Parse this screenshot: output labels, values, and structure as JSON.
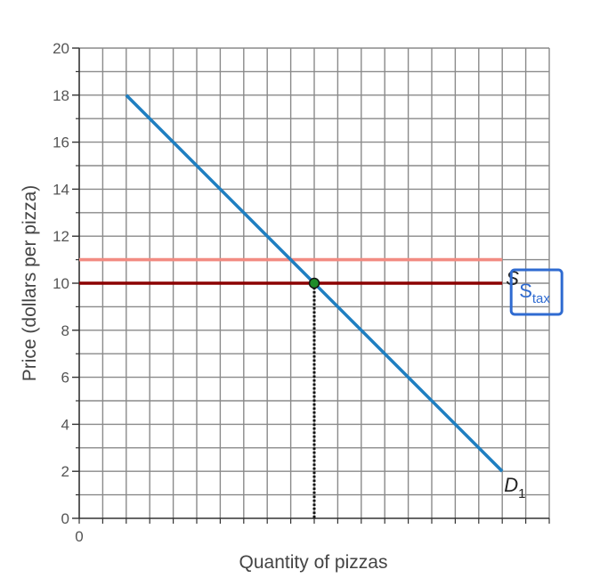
{
  "chart_data": {
    "type": "line",
    "xlabel": "Quantity of pizzas",
    "ylabel": "Price (dollars per pizza)",
    "ylim": [
      0,
      20
    ],
    "y_ticks": [
      0,
      2,
      4,
      6,
      8,
      10,
      12,
      14,
      16,
      18,
      20
    ],
    "x_origin_label": "0",
    "grid": true,
    "series": [
      {
        "id": "demand",
        "name": "D",
        "name_subscript": "1",
        "color": "#1f7fc1",
        "points": [
          [
            2,
            18
          ],
          [
            18,
            2
          ]
        ]
      },
      {
        "id": "supply",
        "name": "S",
        "name_subscript": "",
        "color": "#8b0000",
        "points": [
          [
            0,
            10
          ],
          [
            18,
            10
          ]
        ]
      },
      {
        "id": "supply_tax",
        "name": "S",
        "name_subscript": "tax",
        "color": "#f28b82",
        "points": [
          [
            0,
            11
          ],
          [
            18,
            11
          ]
        ]
      }
    ],
    "equilibrium": {
      "x": 10,
      "y": 10,
      "color": "#1e8c2a"
    },
    "label_box_color": "#2f6bd1"
  }
}
